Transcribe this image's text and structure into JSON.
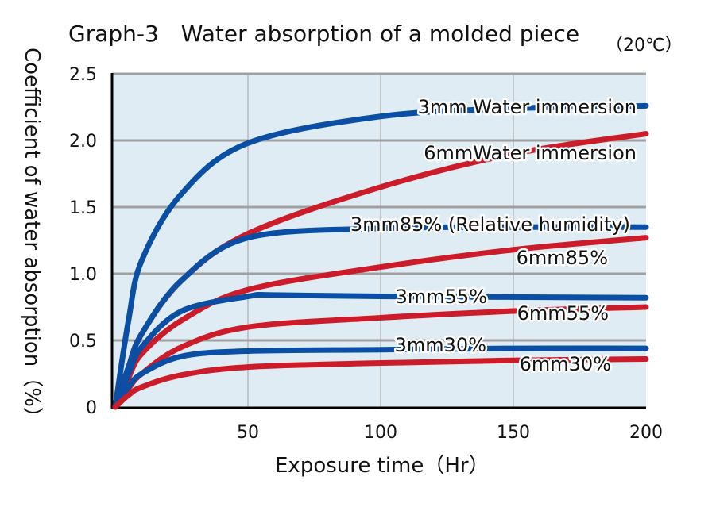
{
  "chart_data": {
    "type": "line",
    "title": "Graph-3　Water absorption of a molded piece",
    "subtitle": "（20℃）",
    "xlabel": "Exposure time（Hr）",
    "ylabel": "Coefficient of water absorption（%）",
    "xlim": [
      0,
      200
    ],
    "ylim": [
      0,
      2.5
    ],
    "xticks": [
      "50",
      "100",
      "150",
      "200"
    ],
    "yticks": [
      "0",
      "0.5",
      "1.0",
      "1.5",
      "2.0",
      "2.5"
    ],
    "grid": true,
    "colors": {
      "3mm": "#0a4fa3",
      "6mm": "#cc1c2a",
      "background": "#e0ecf4",
      "grid": "#a0a0a0"
    },
    "series": [
      {
        "name": "3mm Water immersion",
        "thickness": "3mm",
        "x": [
          0,
          5,
          10,
          25,
          50,
          100,
          150,
          200
        ],
        "y": [
          0,
          0.65,
          1.1,
          1.6,
          1.98,
          2.18,
          2.24,
          2.26
        ]
      },
      {
        "name": "6mmWater immersion",
        "thickness": "6mm",
        "x": [
          0,
          5,
          10,
          25,
          50,
          100,
          150,
          200
        ],
        "y": [
          0,
          0.3,
          0.55,
          0.95,
          1.3,
          1.65,
          1.9,
          2.05
        ]
      },
      {
        "name": "3mm85% (Relative humidity)",
        "thickness": "3mm",
        "x": [
          0,
          5,
          10,
          25,
          50,
          100,
          150,
          200
        ],
        "y": [
          0,
          0.3,
          0.55,
          0.95,
          1.27,
          1.34,
          1.35,
          1.35
        ]
      },
      {
        "name": "6mm85%",
        "thickness": "6mm",
        "x": [
          0,
          5,
          10,
          25,
          50,
          100,
          150,
          200
        ],
        "y": [
          0,
          0.22,
          0.4,
          0.65,
          0.88,
          1.05,
          1.18,
          1.27
        ]
      },
      {
        "name": "3mm55%",
        "thickness": "3mm",
        "x": [
          0,
          5,
          10,
          25,
          50,
          60,
          100,
          200
        ],
        "y": [
          0,
          0.25,
          0.45,
          0.72,
          0.83,
          0.84,
          0.83,
          0.82
        ]
      },
      {
        "name": "6mm55%",
        "thickness": "6mm",
        "x": [
          0,
          5,
          10,
          25,
          50,
          100,
          150,
          200
        ],
        "y": [
          0,
          0.14,
          0.25,
          0.45,
          0.6,
          0.67,
          0.72,
          0.75
        ]
      },
      {
        "name": "3mm30%",
        "thickness": "3mm",
        "x": [
          0,
          5,
          10,
          25,
          50,
          100,
          150,
          200
        ],
        "y": [
          0,
          0.15,
          0.25,
          0.38,
          0.42,
          0.43,
          0.44,
          0.44
        ]
      },
      {
        "name": "6mm30%",
        "thickness": "6mm",
        "x": [
          0,
          5,
          10,
          25,
          50,
          100,
          150,
          200
        ],
        "y": [
          0,
          0.09,
          0.15,
          0.24,
          0.3,
          0.33,
          0.35,
          0.36
        ]
      }
    ]
  }
}
